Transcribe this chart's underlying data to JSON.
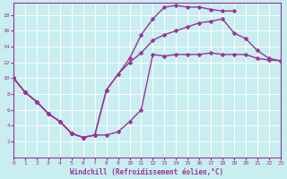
{
  "xlabel": "Windchill (Refroidissement éolien,°C)",
  "background_color": "#c8eef0",
  "line_color": "#993399",
  "grid_color": "#ffffff",
  "xlim": [
    0,
    23
  ],
  "ylim": [
    0,
    19.5
  ],
  "xticks": [
    0,
    1,
    2,
    3,
    4,
    5,
    6,
    7,
    8,
    9,
    10,
    11,
    12,
    13,
    14,
    15,
    16,
    17,
    18,
    19,
    20,
    21,
    22,
    23
  ],
  "yticks": [
    2,
    4,
    6,
    8,
    10,
    12,
    14,
    16,
    18
  ],
  "line1_x": [
    0,
    1,
    2,
    3,
    4,
    5,
    6,
    7,
    8,
    9,
    10,
    11,
    12,
    13,
    14,
    15,
    16,
    17,
    18,
    19,
    20,
    21,
    22,
    23
  ],
  "line1_y": [
    10,
    8.2,
    7,
    5.5,
    4.5,
    3,
    2.5,
    2.8,
    8.5,
    10.5,
    12,
    13.2,
    14.8,
    15.5,
    16,
    16.5,
    17,
    17.2,
    17.5,
    15.7,
    15.0,
    13.5,
    12.5,
    12.2
  ],
  "line2_x": [
    0,
    1,
    2,
    3,
    4,
    5,
    6,
    7,
    8,
    10,
    11,
    12,
    13,
    14,
    15,
    16,
    17,
    18,
    19
  ],
  "line2_y": [
    10,
    8.2,
    7,
    5.5,
    4.5,
    3,
    2.5,
    2.8,
    8.5,
    12.5,
    15.5,
    17.5,
    19.0,
    19.2,
    19.0,
    19.0,
    18.7,
    18.5,
    18.5
  ],
  "line3_x": [
    0,
    1,
    2,
    3,
    4,
    5,
    6,
    7,
    8,
    9,
    10,
    11,
    12,
    13,
    14,
    15,
    16,
    17,
    18,
    19,
    20,
    21,
    22,
    23
  ],
  "line3_y": [
    10,
    8.2,
    7,
    5.5,
    4.5,
    3,
    2.5,
    2.8,
    2.8,
    3.2,
    4.5,
    6,
    13,
    12.8,
    13,
    13,
    13,
    13.2,
    13,
    13,
    13,
    12.5,
    12.3,
    12.2
  ],
  "marker_size": 2.5,
  "line_width": 1.0
}
